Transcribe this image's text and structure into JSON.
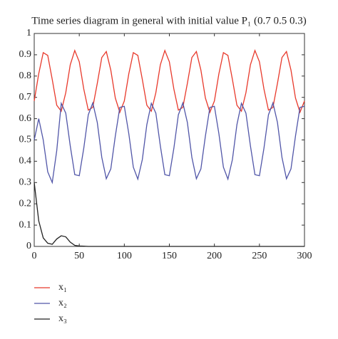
{
  "chart_data": {
    "type": "line",
    "title": "Time series diagram in general with initial value P₁ (0.7 0.5 0.3)",
    "x": [
      0,
      5,
      10,
      15,
      20,
      25,
      30,
      35,
      40,
      45,
      50,
      55,
      60,
      65,
      70,
      75,
      80,
      85,
      90,
      95,
      100,
      105,
      110,
      115,
      120,
      125,
      130,
      135,
      140,
      145,
      150,
      155,
      160,
      165,
      170,
      175,
      180,
      185,
      190,
      195,
      200,
      205,
      210,
      215,
      220,
      225,
      230,
      235,
      240,
      245,
      250,
      255,
      260,
      265,
      270,
      275,
      280,
      285,
      290,
      295,
      300
    ],
    "series": [
      {
        "name": "x₁",
        "color": "#e8392b",
        "values": [
          0.683,
          0.811,
          0.91,
          0.897,
          0.784,
          0.663,
          0.635,
          0.722,
          0.853,
          0.92,
          0.867,
          0.739,
          0.64,
          0.653,
          0.766,
          0.887,
          0.915,
          0.828,
          0.697,
          0.63,
          0.683,
          0.811,
          0.91,
          0.897,
          0.784,
          0.663,
          0.635,
          0.722,
          0.853,
          0.92,
          0.867,
          0.739,
          0.64,
          0.653,
          0.766,
          0.887,
          0.915,
          0.828,
          0.697,
          0.63,
          0.683,
          0.811,
          0.91,
          0.897,
          0.784,
          0.663,
          0.635,
          0.722,
          0.853,
          0.92,
          0.867,
          0.739,
          0.64,
          0.653,
          0.766,
          0.887,
          0.915,
          0.828,
          0.697,
          0.63,
          0.683
        ]
      },
      {
        "name": "x₂",
        "color": "#5156a8",
        "values": [
          0.5,
          0.6,
          0.5,
          0.35,
          0.3,
          0.45,
          0.672,
          0.626,
          0.472,
          0.337,
          0.332,
          0.461,
          0.618,
          0.674,
          0.582,
          0.418,
          0.318,
          0.364,
          0.518,
          0.653,
          0.658,
          0.529,
          0.372,
          0.316,
          0.408,
          0.572,
          0.672,
          0.626,
          0.472,
          0.337,
          0.332,
          0.461,
          0.618,
          0.674,
          0.582,
          0.418,
          0.318,
          0.364,
          0.518,
          0.653,
          0.658,
          0.529,
          0.372,
          0.316,
          0.408,
          0.572,
          0.672,
          0.626,
          0.472,
          0.337,
          0.332,
          0.461,
          0.618,
          0.674,
          0.582,
          0.418,
          0.318,
          0.364,
          0.518,
          0.653,
          0.658
        ]
      },
      {
        "name": "x₃",
        "color": "#222222",
        "values": [
          0.3,
          0.12,
          0.04,
          0.015,
          0.01,
          0.035,
          0.05,
          0.045,
          0.02,
          0.005,
          0.002,
          0.001,
          0,
          0,
          0,
          0,
          0,
          0,
          0,
          0,
          0,
          0,
          0,
          0,
          0,
          0,
          0,
          0,
          0,
          0,
          0,
          0,
          0,
          0,
          0,
          0,
          0,
          0,
          0,
          0,
          0,
          0,
          0,
          0,
          0,
          0,
          0,
          0,
          0,
          0,
          0,
          0,
          0,
          0,
          0,
          0,
          0,
          0,
          0,
          0,
          0
        ]
      }
    ],
    "xlim": [
      0,
      300
    ],
    "xticks": [
      0,
      50,
      100,
      150,
      200,
      250,
      300
    ],
    "ylim": [
      0,
      1
    ],
    "yticks": [
      0,
      0.1,
      0.2,
      0.3,
      0.4,
      0.5,
      0.6,
      0.7,
      0.8,
      0.9,
      1
    ]
  }
}
